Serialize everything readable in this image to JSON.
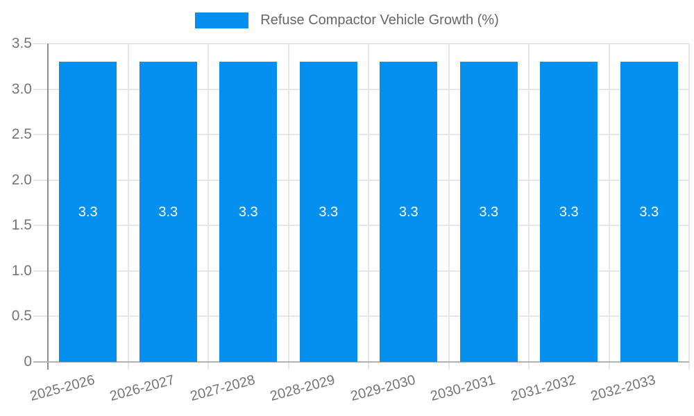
{
  "chart_data": {
    "type": "bar",
    "title": "Refuse Compactor Vehicle Growth (%)",
    "legend_position": "top-center",
    "categories": [
      "2025-2026",
      "2026-2027",
      "2027-2028",
      "2028-2029",
      "2029-2030",
      "2030-2031",
      "2031-2032",
      "2032-2033"
    ],
    "values": [
      3.3,
      3.3,
      3.3,
      3.3,
      3.3,
      3.3,
      3.3,
      3.3
    ],
    "bar_value_labels": [
      "3.3",
      "3.3",
      "3.3",
      "3.3",
      "3.3",
      "3.3",
      "3.3",
      "3.3"
    ],
    "xlabel": "",
    "ylabel": "",
    "ylim": [
      0,
      3.5
    ],
    "yticks": [
      0,
      0.5,
      1.0,
      1.5,
      2.0,
      2.5,
      3.0,
      3.5
    ],
    "ytick_labels": [
      "0",
      "0.5",
      "1.0",
      "1.5",
      "2.0",
      "2.5",
      "3.0",
      "3.5"
    ],
    "grid": true,
    "bar_color": "#0590F0",
    "bar_label_color": "#ffffff"
  },
  "colors": {
    "background": "#ffffff",
    "gridline": "#e6e6e6",
    "y_axis_line": "#8e8e8e",
    "x_axis_line": "#b2b2b2",
    "tick_text": "#757575",
    "legend_text": "#666666"
  }
}
